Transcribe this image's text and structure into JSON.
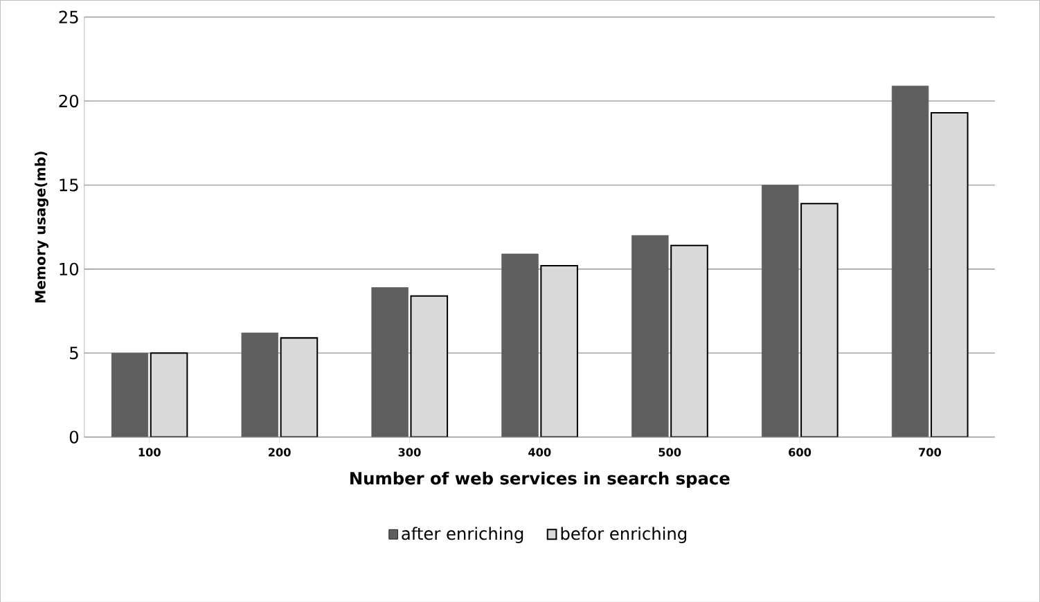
{
  "chart_data": {
    "type": "bar",
    "xlabel": "Number of web services in search space",
    "ylabel": "Memory usage(mb)",
    "categories": [
      "100",
      "200",
      "300",
      "400",
      "500",
      "600",
      "700"
    ],
    "series": [
      {
        "name": "after enriching",
        "color": "#5f5f5f",
        "values": [
          5.0,
          6.2,
          8.9,
          10.9,
          12.0,
          15.0,
          20.9
        ]
      },
      {
        "name": "befor enriching",
        "color": "#d9d9d9",
        "values": [
          5.0,
          5.9,
          8.4,
          10.2,
          11.4,
          13.9,
          19.3
        ]
      }
    ],
    "ylim": [
      0,
      25
    ],
    "yticks": [
      0,
      5,
      10,
      15,
      20,
      25
    ],
    "grid": "y",
    "legend": "bottom"
  }
}
